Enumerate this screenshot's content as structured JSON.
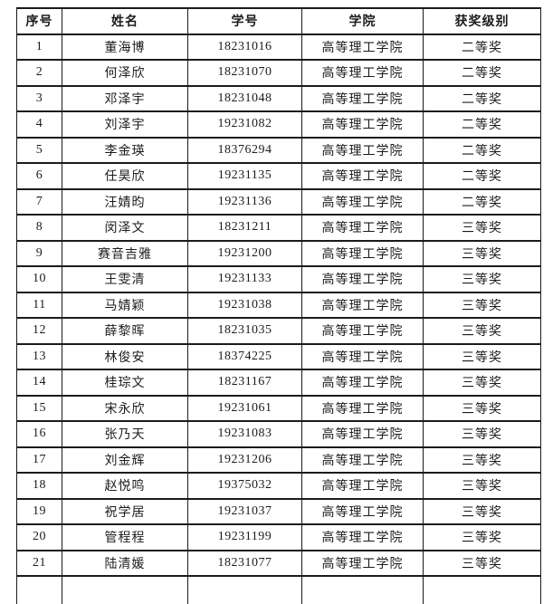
{
  "table": {
    "headers": [
      "序号",
      "姓名",
      "学号",
      "学院",
      "获奖级别"
    ],
    "rows": [
      [
        "1",
        "董海博",
        "18231016",
        "高等理工学院",
        "二等奖"
      ],
      [
        "2",
        "何泽欣",
        "18231070",
        "高等理工学院",
        "二等奖"
      ],
      [
        "3",
        "邓泽宇",
        "18231048",
        "高等理工学院",
        "二等奖"
      ],
      [
        "4",
        "刘泽宇",
        "19231082",
        "高等理工学院",
        "二等奖"
      ],
      [
        "5",
        "李金瑛",
        "18376294",
        "高等理工学院",
        "二等奖"
      ],
      [
        "6",
        "任昊欣",
        "19231135",
        "高等理工学院",
        "二等奖"
      ],
      [
        "7",
        "汪婧昀",
        "19231136",
        "高等理工学院",
        "二等奖"
      ],
      [
        "8",
        "闵泽文",
        "18231211",
        "高等理工学院",
        "三等奖"
      ],
      [
        "9",
        "赛音吉雅",
        "19231200",
        "高等理工学院",
        "三等奖"
      ],
      [
        "10",
        "王雯清",
        "19231133",
        "高等理工学院",
        "三等奖"
      ],
      [
        "11",
        "马婧颖",
        "19231038",
        "高等理工学院",
        "三等奖"
      ],
      [
        "12",
        "薛黎晖",
        "18231035",
        "高等理工学院",
        "三等奖"
      ],
      [
        "13",
        "林俊安",
        "18374225",
        "高等理工学院",
        "三等奖"
      ],
      [
        "14",
        "桂琮文",
        "18231167",
        "高等理工学院",
        "三等奖"
      ],
      [
        "15",
        "宋永欣",
        "19231061",
        "高等理工学院",
        "三等奖"
      ],
      [
        "16",
        "张乃天",
        "19231083",
        "高等理工学院",
        "三等奖"
      ],
      [
        "17",
        "刘金辉",
        "19231206",
        "高等理工学院",
        "三等奖"
      ],
      [
        "18",
        "赵悦鸣",
        "19375032",
        "高等理工学院",
        "三等奖"
      ],
      [
        "19",
        "祝学居",
        "19231037",
        "高等理工学院",
        "三等奖"
      ],
      [
        "20",
        "管程程",
        "19231199",
        "高等理工学院",
        "三等奖"
      ],
      [
        "21",
        "陆清媛",
        "18231077",
        "高等理工学院",
        "三等奖"
      ]
    ]
  },
  "colors": {
    "border": "#1b1b1b",
    "text": "#1c1c1c",
    "background": "#ffffff"
  }
}
